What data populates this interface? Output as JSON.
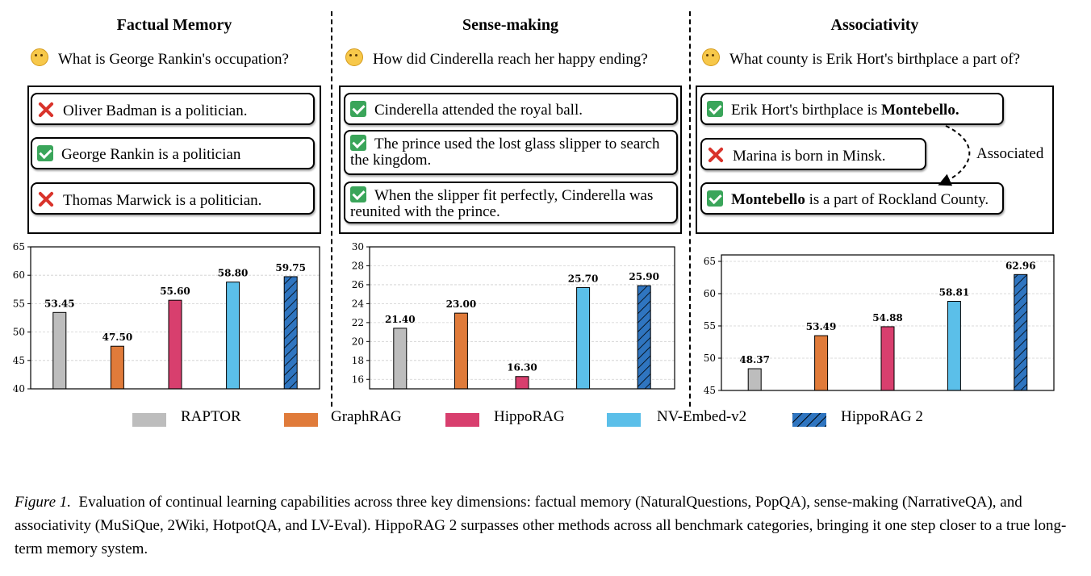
{
  "columns": [
    {
      "title": "Factual Memory",
      "question": "What is George Rankin's occupation?",
      "statements": [
        {
          "mark": "no",
          "text": "Oliver Badman is a politician."
        },
        {
          "mark": "ok",
          "text": "George Rankin is a politician"
        },
        {
          "mark": "no",
          "text": "Thomas Marwick is a politician."
        }
      ]
    },
    {
      "title": "Sense-making",
      "question": "How did Cinderella reach her happy ending?",
      "statements": [
        {
          "mark": "ok",
          "text": "Cinderella attended the royal ball."
        },
        {
          "mark": "ok",
          "text": "The prince used the lost glass slipper to search the kingdom."
        },
        {
          "mark": "ok",
          "text": "When the slipper fit perfectly, Cinderella was reunited with the prince."
        }
      ]
    },
    {
      "title": "Associativity",
      "question": "What county is Erik Hort's birthplace a part of?",
      "statements": [
        {
          "mark": "ok",
          "text_before": "Erik Hort's birthplace is ",
          "bold": "Montebello.",
          "text_after": ""
        },
        {
          "mark": "no",
          "text": "Marina is born in Minsk."
        },
        {
          "mark": "ok",
          "text_before": "",
          "bold": "Montebello",
          "text_after": " is a part of Rockland County."
        }
      ],
      "arrow_label": "Associated"
    }
  ],
  "legend": [
    {
      "name": "RAPTOR",
      "color": "#bdbdbd"
    },
    {
      "name": "GraphRAG",
      "color": "#e07b3a"
    },
    {
      "name": "HippoRAG",
      "color": "#d83f6e"
    },
    {
      "name": "NV-Embed-v2",
      "color": "#5bbfe9"
    },
    {
      "name": "HippoRAG 2",
      "color": "#2f75c0"
    }
  ],
  "chart_data": [
    {
      "type": "bar",
      "categories": [
        "RAPTOR",
        "GraphRAG",
        "HippoRAG",
        "NV-Embed-v2",
        "HippoRAG 2"
      ],
      "values": [
        53.45,
        47.5,
        55.6,
        58.8,
        59.75
      ],
      "value_labels": [
        "53.45",
        "47.50",
        "55.60",
        "58.80",
        "59.75"
      ],
      "ylim": [
        40,
        65
      ],
      "yticks": [
        40,
        45,
        50,
        55,
        60,
        65
      ],
      "grid": true
    },
    {
      "type": "bar",
      "categories": [
        "RAPTOR",
        "GraphRAG",
        "HippoRAG",
        "NV-Embed-v2",
        "HippoRAG 2"
      ],
      "values": [
        21.4,
        23.0,
        16.3,
        25.7,
        25.9
      ],
      "value_labels": [
        "21.40",
        "23.00",
        "16.30",
        "25.70",
        "25.90"
      ],
      "ylim": [
        15,
        30
      ],
      "yticks": [
        16,
        18,
        20,
        22,
        24,
        26,
        28,
        30
      ],
      "grid": true
    },
    {
      "type": "bar",
      "categories": [
        "RAPTOR",
        "GraphRAG",
        "HippoRAG",
        "NV-Embed-v2",
        "HippoRAG 2"
      ],
      "values": [
        48.37,
        53.49,
        54.88,
        58.81,
        62.96
      ],
      "value_labels": [
        "48.37",
        "53.49",
        "54.88",
        "58.81",
        "62.96"
      ],
      "ylim": [
        45,
        66
      ],
      "yticks": [
        45,
        50,
        55,
        60,
        65
      ],
      "grid": true
    }
  ],
  "caption": {
    "label": "Figure 1.",
    "text": "Evaluation of continual learning capabilities across three key dimensions: factual memory (NaturalQuestions, PopQA), sense-making (NarrativeQA), and associativity (MuSiQue, 2Wiki, HotpotQA, and LV-Eval). HippoRAG 2 surpasses other methods across all benchmark categories, bringing it one step closer to a true long-term memory system."
  }
}
